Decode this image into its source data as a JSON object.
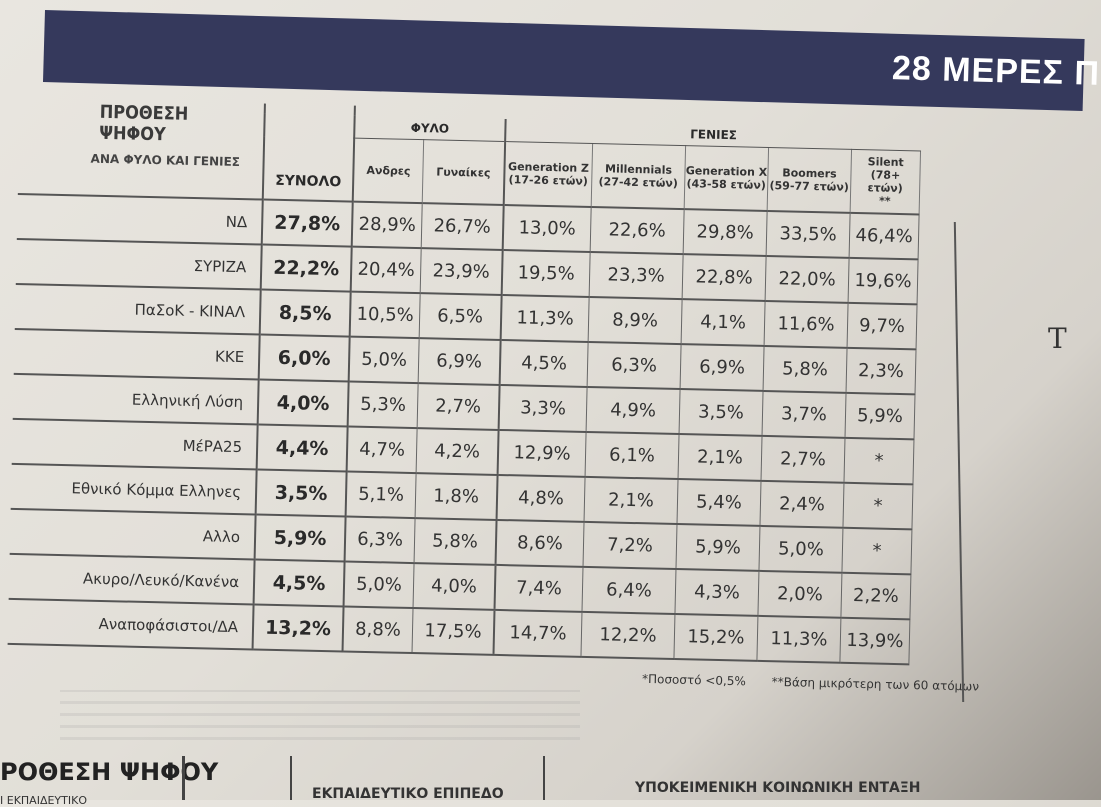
{
  "header": {
    "banner_title": "28 ΜΕΡΕΣ Π"
  },
  "table": {
    "title_line1": "ΠΡΟΘΕΣΗ",
    "title_line2": "ΨΗΦΟΥ",
    "subtitle": "ΑΝΑ ΦΥΛΟ ΚΑΙ ΓΕΝΙΕΣ",
    "total_header": "ΣΥΝΟΛΟ",
    "group_gender": "ΦΥΛΟ",
    "group_generations": "ΓΕΝΙΕΣ",
    "col_men": "Ανδρες",
    "col_women": "Γυναίκες",
    "col_genz": "Generation Z",
    "col_genz_sub": "(17-26 ετών)",
    "col_mill": "Millennials",
    "col_mill_sub": "(27-42 ετών)",
    "col_genx": "Generation X",
    "col_genx_sub": "(43-58 ετών)",
    "col_boom": "Boomers",
    "col_boom_sub": "(59-77 ετών)",
    "col_silent": "Silent",
    "col_silent_sub": "(78+ ετών)",
    "col_silent_note": "**",
    "rows": [
      {
        "party": "ΝΔ",
        "total": "27,8%",
        "men": "28,9%",
        "women": "26,7%",
        "genz": "13,0%",
        "mill": "22,6%",
        "genx": "29,8%",
        "boom": "33,5%",
        "silent": "46,4%"
      },
      {
        "party": "ΣΥΡΙΖΑ",
        "total": "22,2%",
        "men": "20,4%",
        "women": "23,9%",
        "genz": "19,5%",
        "mill": "23,3%",
        "genx": "22,8%",
        "boom": "22,0%",
        "silent": "19,6%"
      },
      {
        "party": "ΠαΣοΚ - ΚΙΝΑΛ",
        "total": "8,5%",
        "men": "10,5%",
        "women": "6,5%",
        "genz": "11,3%",
        "mill": "8,9%",
        "genx": "4,1%",
        "boom": "11,6%",
        "silent": "9,7%"
      },
      {
        "party": "ΚΚΕ",
        "total": "6,0%",
        "men": "5,0%",
        "women": "6,9%",
        "genz": "4,5%",
        "mill": "6,3%",
        "genx": "6,9%",
        "boom": "5,8%",
        "silent": "2,3%"
      },
      {
        "party": "Ελληνική Λύση",
        "total": "4,0%",
        "men": "5,3%",
        "women": "2,7%",
        "genz": "3,3%",
        "mill": "4,9%",
        "genx": "3,5%",
        "boom": "3,7%",
        "silent": "5,9%"
      },
      {
        "party": "ΜέΡΑ25",
        "total": "4,4%",
        "men": "4,7%",
        "women": "4,2%",
        "genz": "12,9%",
        "mill": "6,1%",
        "genx": "2,1%",
        "boom": "2,7%",
        "silent": "*"
      },
      {
        "party": "Εθνικό Κόμμα Ελληνες",
        "total": "3,5%",
        "men": "5,1%",
        "women": "1,8%",
        "genz": "4,8%",
        "mill": "2,1%",
        "genx": "5,4%",
        "boom": "2,4%",
        "silent": "*"
      },
      {
        "party": "Αλλο",
        "total": "5,9%",
        "men": "6,3%",
        "women": "5,8%",
        "genz": "8,6%",
        "mill": "7,2%",
        "genx": "5,9%",
        "boom": "5,0%",
        "silent": "*"
      },
      {
        "party": "Ακυρο/Λευκό/Κανένα",
        "total": "4,5%",
        "men": "5,0%",
        "women": "4,0%",
        "genz": "7,4%",
        "mill": "6,4%",
        "genx": "4,3%",
        "boom": "2,0%",
        "silent": "2,2%"
      },
      {
        "party": "Αναποφάσιστοι/ΔΑ",
        "total": "13,2%",
        "men": "8,8%",
        "women": "17,5%",
        "genz": "14,7%",
        "mill": "12,2%",
        "genx": "15,2%",
        "boom": "11,3%",
        "silent": "13,9%"
      }
    ]
  },
  "footnotes": {
    "note1": "*Ποσοστό <0,5%",
    "note2": "**Βάση μικρότερη των 60 ατόμων"
  },
  "side": {
    "letter": "Τ"
  },
  "bottom": {
    "heading1": "ΡΟΘΕΣΗ ΨΗΦΟΥ",
    "heading2": "ΕΚΠΑΙΔΕΥΤΙΚΟ ΕΠΙΠΕΔΟ",
    "heading3": "ΥΠΟΚΕΙΜΕΝΙΚΗ ΚΟΙΝΩΝΙΚΗ ΕΝΤΑΞΗ",
    "sub1": "Ι ΕΚΠΑΙΔΕΥΤΙΚΟ"
  }
}
